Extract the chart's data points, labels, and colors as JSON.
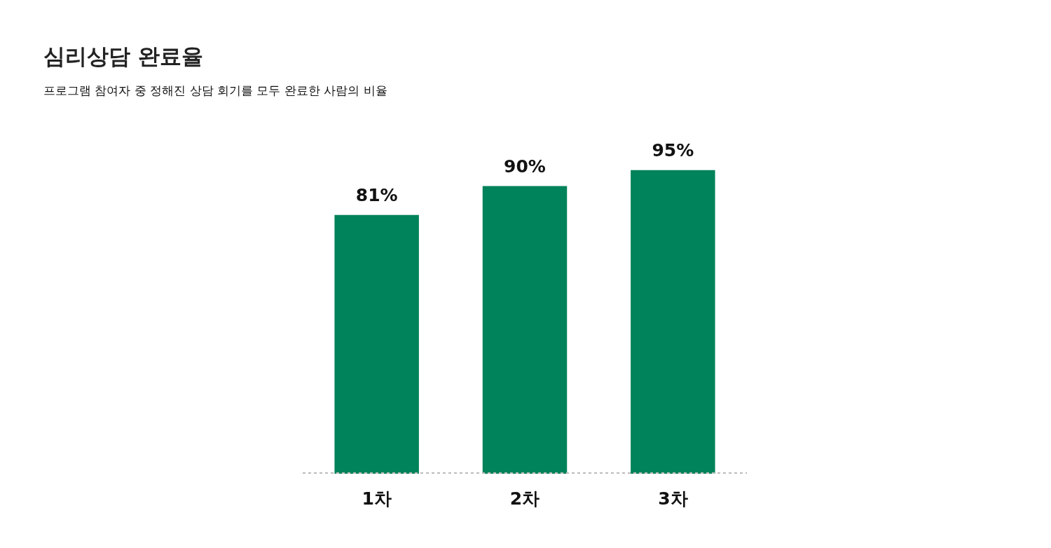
{
  "chart_data": {
    "type": "bar",
    "title": "심리상담 완료율",
    "subtitle": "프로그램 참여자 중 정해진 상담 회기를 모두 완료한 사람의 비율",
    "categories": [
      "1차",
      "2차",
      "3차"
    ],
    "values": [
      81,
      90,
      95
    ],
    "value_labels": [
      "81%",
      "90%",
      "95%"
    ],
    "color": "#00825a",
    "tick_labels": "x",
    "grid": false
  }
}
